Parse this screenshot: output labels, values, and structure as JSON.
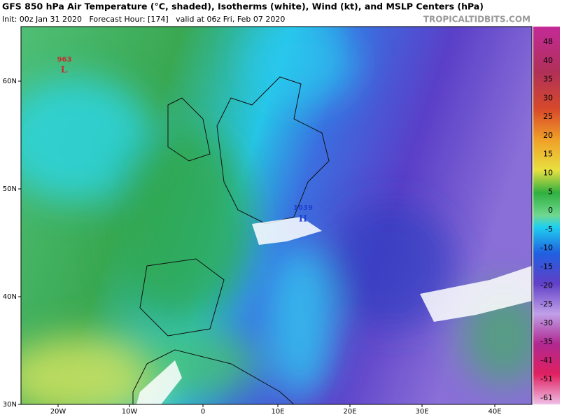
{
  "header": {
    "title": "GFS 850 hPa Air Temperature (°C, shaded), Isotherms (white), Wind (kt), and MSLP Centers (hPa)",
    "subtitle": "Init: 00z Jan 31 2020   Forecast Hour: [174]   valid at 06z Fri, Feb 07 2020",
    "source": "TROPICALTIDBITS.COM"
  },
  "map": {
    "latitude_labels": [
      "60N",
      "50N",
      "40N",
      "30N"
    ],
    "longitude_labels": [
      "20W",
      "10W",
      "0",
      "10E",
      "20E",
      "30E",
      "40E"
    ],
    "pressure_centers": [
      {
        "value": "963",
        "symbol": "L"
      },
      {
        "value": "1039",
        "symbol": "H"
      }
    ]
  },
  "colorbar": {
    "labels": [
      48,
      40,
      35,
      30,
      25,
      20,
      15,
      10,
      5,
      0,
      -5,
      -10,
      -15,
      -20,
      -25,
      -30,
      -35,
      -41,
      -51,
      -61
    ]
  }
}
